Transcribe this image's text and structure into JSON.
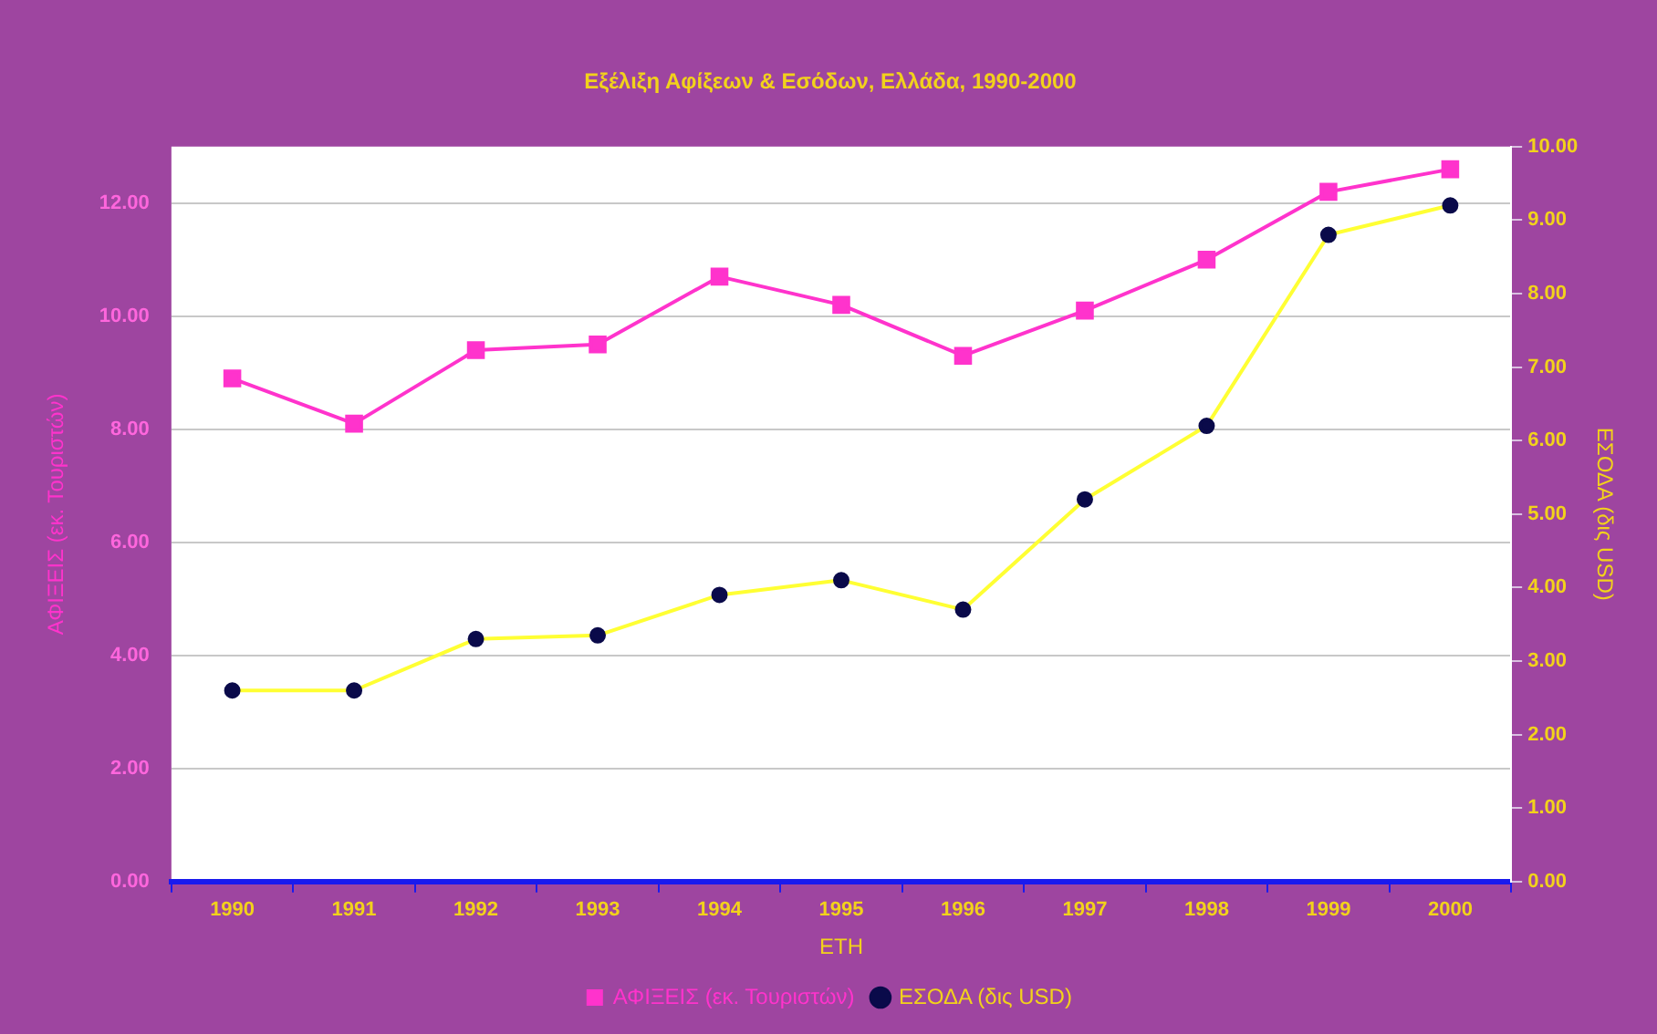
{
  "chart_data": {
    "type": "line",
    "title": "Εξέλιξη Αφίξεων & Εσόδων, Ελλάδα, 1990-2000",
    "xlabel": "ΕΤΗ",
    "ylabel": "ΑΦΙΞΕΙΣ (εκ. Τουριστών)",
    "y2label": "ΕΣΟΔΑ (δις USD)",
    "categories": [
      "1990",
      "1991",
      "1992",
      "1993",
      "1994",
      "1995",
      "1996",
      "1997",
      "1998",
      "1999",
      "2000"
    ],
    "series": [
      {
        "name": "ΑΦΙΞΕΙΣ (εκ. Τουριστών)",
        "color": "#ff33cc",
        "marker": "square",
        "values": [
          8.9,
          8.1,
          9.4,
          9.5,
          10.7,
          10.2,
          9.3,
          10.1,
          11.0,
          12.2,
          12.6
        ]
      },
      {
        "name": "ΕΣΟΔΑ (δις USD)",
        "color": "#ffff33",
        "marker": "circle",
        "axis": "y2",
        "values": [
          2.6,
          2.6,
          3.3,
          3.35,
          3.9,
          4.1,
          3.7,
          5.2,
          6.2,
          8.8,
          9.2
        ]
      }
    ],
    "ylim": [
      0,
      13
    ],
    "yticks": [
      {
        "value": 0,
        "label": "0.00"
      },
      {
        "value": 2,
        "label": "2.00"
      },
      {
        "value": 4,
        "label": "4.00"
      },
      {
        "value": 6,
        "label": "6.00"
      },
      {
        "value": 8,
        "label": "8.00"
      },
      {
        "value": 10,
        "label": "10.00"
      },
      {
        "value": 12,
        "label": "12.00"
      }
    ],
    "y2lim": [
      0,
      10
    ],
    "y2ticks": [
      {
        "value": 0,
        "label": "0.00"
      },
      {
        "value": 1,
        "label": "1.00"
      },
      {
        "value": 2,
        "label": "2.00"
      },
      {
        "value": 3,
        "label": "3.00"
      },
      {
        "value": 4,
        "label": "4.00"
      },
      {
        "value": 5,
        "label": "5.00"
      },
      {
        "value": 6,
        "label": "6.00"
      },
      {
        "value": 7,
        "label": "7.00"
      },
      {
        "value": 8,
        "label": "8.00"
      },
      {
        "value": 9,
        "label": "9.00"
      },
      {
        "value": 10,
        "label": "10.00"
      }
    ],
    "grid": "y",
    "legend": "bottom",
    "line_style": "solid"
  }
}
